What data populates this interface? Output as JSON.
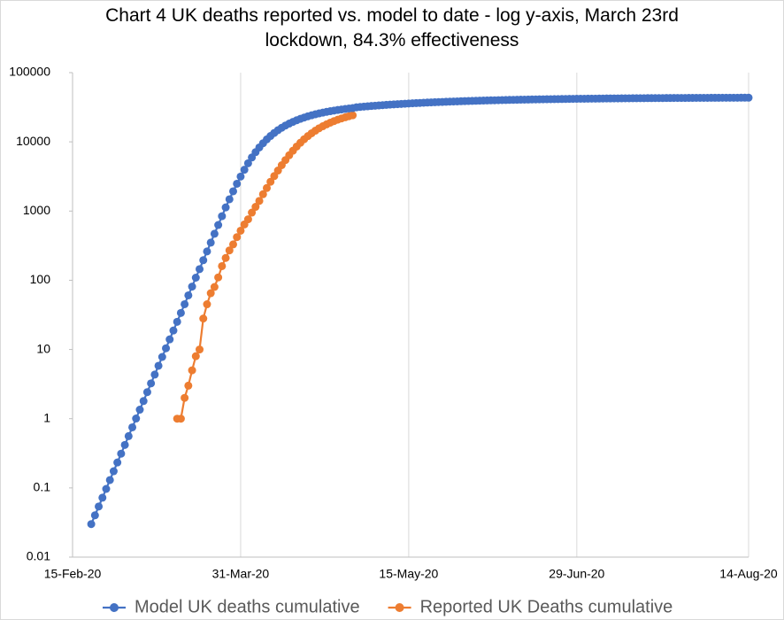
{
  "chart_data": {
    "type": "line",
    "title": "Chart 4 UK deaths reported vs. model to date - log y-axis, March 23rd lockdown, 84.3% effectiveness",
    "x": [
      "2020-02-20",
      "2020-02-21",
      "2020-02-22",
      "2020-02-23",
      "2020-02-24",
      "2020-02-25",
      "2020-02-26",
      "2020-02-27",
      "2020-02-28",
      "2020-02-29",
      "2020-03-01",
      "2020-03-02",
      "2020-03-03",
      "2020-03-04",
      "2020-03-05",
      "2020-03-06",
      "2020-03-07",
      "2020-03-08",
      "2020-03-09",
      "2020-03-10",
      "2020-03-11",
      "2020-03-12",
      "2020-03-13",
      "2020-03-14",
      "2020-03-15",
      "2020-03-16",
      "2020-03-17",
      "2020-03-18",
      "2020-03-19",
      "2020-03-20",
      "2020-03-21",
      "2020-03-22",
      "2020-03-23",
      "2020-03-24",
      "2020-03-25",
      "2020-03-26",
      "2020-03-27",
      "2020-03-28",
      "2020-03-29",
      "2020-03-30",
      "2020-03-31",
      "2020-04-01",
      "2020-04-02",
      "2020-04-03",
      "2020-04-04",
      "2020-04-05",
      "2020-04-06",
      "2020-04-07",
      "2020-04-08",
      "2020-04-09",
      "2020-04-10",
      "2020-04-11",
      "2020-04-12",
      "2020-04-13",
      "2020-04-14",
      "2020-04-15",
      "2020-04-16",
      "2020-04-17",
      "2020-04-18",
      "2020-04-19",
      "2020-04-20",
      "2020-04-21",
      "2020-04-22",
      "2020-04-23",
      "2020-04-24",
      "2020-04-25",
      "2020-04-26",
      "2020-04-27",
      "2020-04-28",
      "2020-04-29",
      "2020-04-30",
      "2020-05-01",
      "2020-05-02",
      "2020-05-03",
      "2020-05-04",
      "2020-05-05",
      "2020-05-06",
      "2020-05-07",
      "2020-05-08",
      "2020-05-09",
      "2020-05-10",
      "2020-05-11",
      "2020-05-12",
      "2020-05-13",
      "2020-05-14",
      "2020-05-15",
      "2020-05-16",
      "2020-05-17",
      "2020-05-18",
      "2020-05-19",
      "2020-05-20",
      "2020-05-21",
      "2020-05-22",
      "2020-05-23",
      "2020-05-24",
      "2020-05-25",
      "2020-05-26",
      "2020-05-27",
      "2020-05-28",
      "2020-05-29",
      "2020-05-30",
      "2020-05-31",
      "2020-06-01",
      "2020-06-02",
      "2020-06-03",
      "2020-06-04",
      "2020-06-05",
      "2020-06-06",
      "2020-06-07",
      "2020-06-08",
      "2020-06-09",
      "2020-06-10",
      "2020-06-11",
      "2020-06-12",
      "2020-06-13",
      "2020-06-14",
      "2020-06-15",
      "2020-06-16",
      "2020-06-17",
      "2020-06-18",
      "2020-06-19",
      "2020-06-20",
      "2020-06-21",
      "2020-06-22",
      "2020-06-23",
      "2020-06-24",
      "2020-06-25",
      "2020-06-26",
      "2020-06-27",
      "2020-06-28",
      "2020-06-29",
      "2020-06-30",
      "2020-07-01",
      "2020-07-02",
      "2020-07-03",
      "2020-07-04",
      "2020-07-05",
      "2020-07-06",
      "2020-07-07",
      "2020-07-08",
      "2020-07-09",
      "2020-07-10",
      "2020-07-11",
      "2020-07-12",
      "2020-07-13",
      "2020-07-14",
      "2020-07-15",
      "2020-07-16",
      "2020-07-17",
      "2020-07-18",
      "2020-07-19",
      "2020-07-20",
      "2020-07-21",
      "2020-07-22",
      "2020-07-23",
      "2020-07-24",
      "2020-07-25",
      "2020-07-26",
      "2020-07-27",
      "2020-07-28",
      "2020-07-29",
      "2020-07-30",
      "2020-07-31",
      "2020-08-01",
      "2020-08-02",
      "2020-08-03",
      "2020-08-04",
      "2020-08-05",
      "2020-08-06",
      "2020-08-07",
      "2020-08-08",
      "2020-08-09",
      "2020-08-10",
      "2020-08-11",
      "2020-08-12",
      "2020-08-13",
      "2020-08-14"
    ],
    "series": [
      {
        "name": "Reported UK Deaths cumulative",
        "color": "#ed7d31",
        "values": [
          null,
          null,
          null,
          null,
          null,
          null,
          null,
          null,
          null,
          null,
          null,
          null,
          null,
          null,
          null,
          null,
          null,
          null,
          null,
          null,
          null,
          null,
          null,
          1,
          1,
          2,
          3,
          5,
          8,
          10,
          28,
          45,
          65,
          80,
          110,
          160,
          210,
          270,
          330,
          420,
          520,
          640,
          760,
          950,
          1150,
          1400,
          1750,
          2150,
          2650,
          3200,
          3850,
          4600,
          5450,
          6400,
          7450,
          8550,
          9700,
          10900,
          12100,
          13300,
          14500,
          15700,
          16800,
          17900,
          18950,
          19950,
          20900,
          21800,
          22650,
          23450,
          24200,
          null,
          null,
          null,
          null,
          null,
          null,
          null,
          null,
          null,
          null,
          null,
          null,
          null,
          null,
          null,
          null,
          null,
          null,
          null,
          null,
          null,
          null,
          null,
          null,
          null,
          null,
          null,
          null,
          null,
          null,
          null,
          null,
          null,
          null,
          null,
          null,
          null,
          null,
          null,
          null,
          null,
          null,
          null,
          null,
          null,
          null,
          null,
          null,
          null,
          null,
          null,
          null,
          null,
          null,
          null,
          null,
          null,
          null,
          null,
          null,
          null,
          null,
          null,
          null,
          null,
          null,
          null,
          null,
          null,
          null,
          null,
          null,
          null,
          null,
          null,
          null,
          null,
          null,
          null,
          null,
          null,
          null,
          null,
          null,
          null,
          null,
          null,
          null,
          null,
          null,
          null,
          null,
          null,
          null,
          null,
          null,
          null,
          null,
          null,
          null,
          null,
          null,
          null,
          null,
          null,
          null
        ]
      },
      {
        "name": "Model UK deaths cumulative",
        "color": "#4472c4",
        "values": [
          0.03,
          0.0402,
          0.0539,
          0.0722,
          0.0967,
          0.13,
          0.174,
          0.233,
          0.312,
          0.418,
          0.56,
          0.75,
          1.005,
          1.35,
          1.8,
          2.42,
          3.24,
          4.34,
          5.82,
          7.8,
          10.4,
          14,
          18.8,
          25.1,
          33.7,
          45.1,
          60.5,
          81,
          109,
          145,
          195,
          261,
          350,
          470,
          629,
          843,
          1130,
          1480,
          1930,
          2480,
          3150,
          3950,
          4900,
          5950,
          7100,
          8300,
          9550,
          10850,
          12150,
          13450,
          14750,
          16000,
          17200,
          18350,
          19450,
          20500,
          21500,
          22450,
          23350,
          24200,
          25000,
          25750,
          26450,
          27100,
          27720,
          28300,
          28850,
          29370,
          29860,
          30320,
          30760,
          31557,
          31922,
          32277,
          32622,
          32957,
          33281,
          33597,
          33902,
          34199,
          34487,
          34767,
          35039,
          35302,
          35558,
          35806,
          36047,
          36281,
          36508,
          36728,
          36942,
          37149,
          37350,
          37546,
          37735,
          37919,
          38098,
          38272,
          38440,
          38604,
          38762,
          38916,
          39066,
          39211,
          39352,
          39488,
          39621,
          39750,
          39875,
          39996,
          40114,
          40228,
          40339,
          40447,
          40551,
          40653,
          40751,
          40847,
          40939,
          41029,
          41117,
          41201,
          41284,
          41364,
          41441,
          41516,
          41589,
          41660,
          41729,
          41796,
          41861,
          41924,
          41985,
          42044,
          42102,
          42157,
          42212,
          42264,
          42315,
          42365,
          42413,
          42459,
          42505,
          42549,
          42592,
          42633,
          42673,
          42712,
          42750,
          42787,
          42823,
          42857,
          42891,
          42923,
          42955,
          42986,
          43016,
          43045,
          43073,
          43100,
          43127,
          43152,
          43177,
          43201,
          43225,
          43248,
          43270,
          43291,
          43312,
          43333,
          43352,
          43371,
          43390,
          43408,
          43425,
          43442,
          43459
        ]
      }
    ],
    "xlim": [
      "2020-02-15",
      "2020-08-14"
    ],
    "xticks": [
      {
        "value": "2020-02-15",
        "label": "15-Feb-20"
      },
      {
        "value": "2020-03-31",
        "label": "31-Mar-20"
      },
      {
        "value": "2020-05-15",
        "label": "15-May-20"
      },
      {
        "value": "2020-06-29",
        "label": "29-Jun-20"
      },
      {
        "value": "2020-08-14",
        "label": "14-Aug-20"
      }
    ],
    "ylim": [
      0.01,
      100000
    ],
    "yticks": [
      0.01,
      0.1,
      1,
      10,
      100,
      1000,
      10000,
      100000
    ],
    "log_y": true,
    "xgrid": true,
    "ygrid": false,
    "legend": "bottom"
  }
}
